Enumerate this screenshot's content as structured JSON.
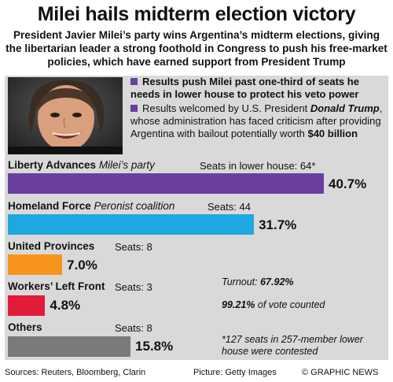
{
  "header": {
    "title": "Milei hails midterm election victory",
    "subtitle": "President Javier Milei’s party wins Argentina’s midterm elections, giving the libertarian leader a strong foothold in Congress to push his free-market policies, which have earned support from President Trump"
  },
  "bullets": {
    "b1": "Results push Milei past one-third of seats he needs in lower house to protect his veto power",
    "b2_pre": "Results welcomed by U.S. President ",
    "b2_name": "Donald Trump",
    "b2_mid": ", whose administration has faced criticism after providing Argentina with bailout potentially worth ",
    "b2_amount": "$40 billion"
  },
  "chart_data": {
    "type": "bar",
    "orientation": "horizontal",
    "xlim": [
      0,
      40.7
    ],
    "categories": [
      "Liberty Advances",
      "Homeland Force",
      "United Provinces",
      "Workers’ Left Front",
      "Others"
    ],
    "descriptions": [
      "Milei’s party",
      "Peronist coalition",
      "",
      "",
      ""
    ],
    "values": [
      40.7,
      31.7,
      7.0,
      4.8,
      15.8
    ],
    "value_labels": [
      "40.7%",
      "31.7%",
      "7.0%",
      "4.8%",
      "15.8%"
    ],
    "seat_labels": [
      "Seats in lower house: 64*",
      "Seats: 44",
      "Seats: 8",
      "Seats: 3",
      "Seats: 8"
    ],
    "colors": [
      "#6b3fa0",
      "#1fa8e0",
      "#f7941d",
      "#e31b3a",
      "#7a7a7a"
    ]
  },
  "notes": {
    "turnout_label": "Turnout: ",
    "turnout_value": "67.92%",
    "counted_value": "99.21%",
    "counted_label": " of vote counted",
    "footnote": "*127 seats in 257-member lower house were contested"
  },
  "footer": {
    "sources": "Sources: Reuters, Bloomberg, Clarin",
    "picture": "Picture: Getty Images",
    "credit": "© GRAPHIC NEWS"
  }
}
